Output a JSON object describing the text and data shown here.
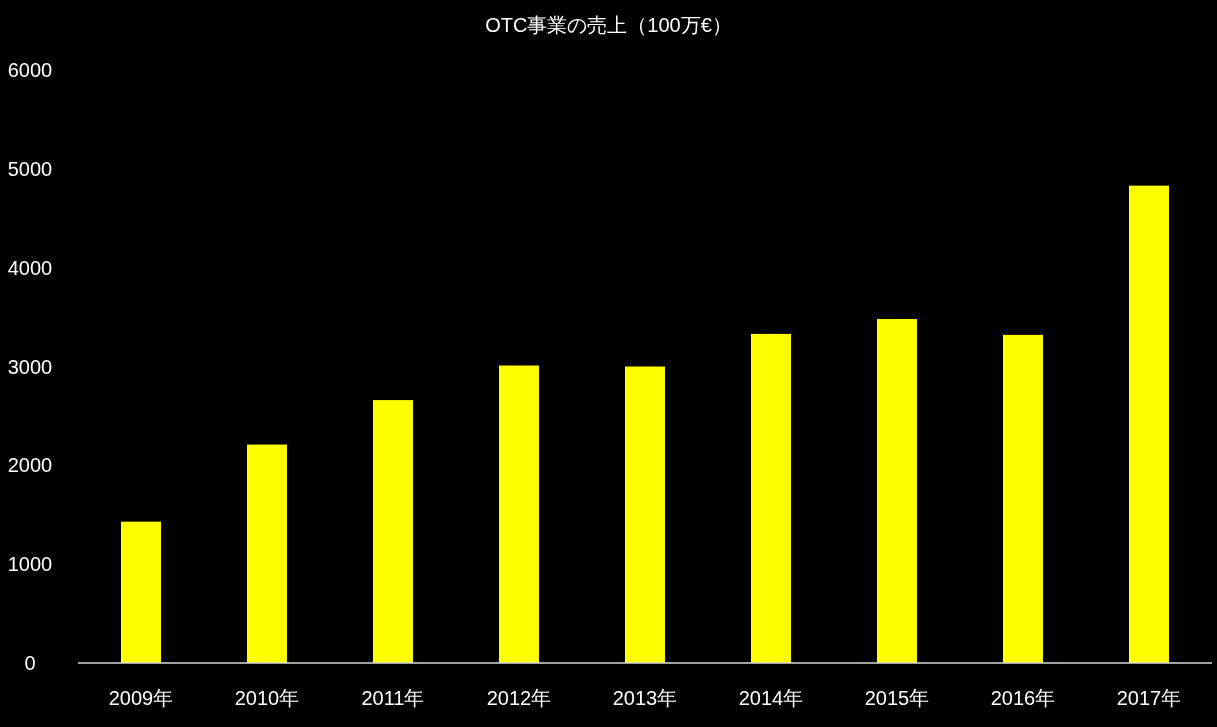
{
  "chart_data": {
    "type": "bar",
    "title": "OTC事業の売上（100万€）",
    "categories": [
      "2009年",
      "2010年",
      "2011年",
      "2012年",
      "2013年",
      "2014年",
      "2015年",
      "2016年",
      "2017年"
    ],
    "values": [
      1430,
      2210,
      2660,
      3010,
      3000,
      3330,
      3480,
      3320,
      4830
    ],
    "color": "#ffff00",
    "ylim": [
      0,
      6000
    ],
    "yticks": [
      0,
      1000,
      2000,
      3000,
      4000,
      5000,
      6000
    ],
    "grid": false
  }
}
